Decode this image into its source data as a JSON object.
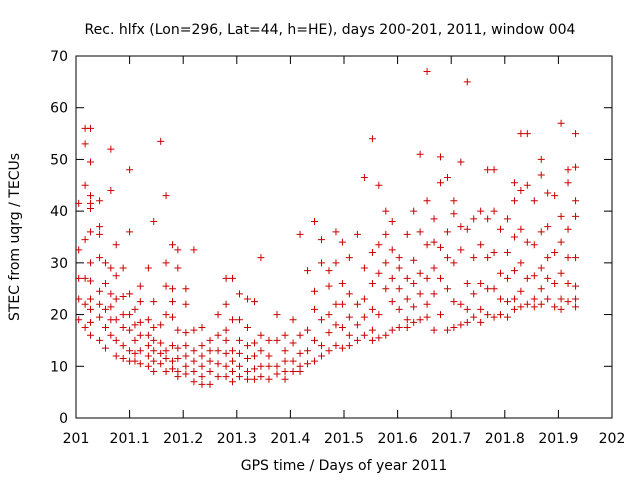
{
  "chart_data": {
    "type": "scatter",
    "title": "Rec. hlfx (Lon=296, Lat=44, h=HE), days 200-201, 2011, window 004",
    "xlabel": "GPS time / Days of year 2011",
    "ylabel": "STEC from uqrg / TECUs",
    "xlim": [
      201,
      202
    ],
    "ylim": [
      0,
      70
    ],
    "xticks": [
      201,
      201.1,
      201.2,
      201.3,
      201.4,
      201.5,
      201.6,
      201.7,
      201.8,
      201.9,
      202
    ],
    "xtick_labels": [
      "201",
      "201.1",
      "201.2",
      "201.3",
      "201.4",
      "201.5",
      "201.6",
      "201.7",
      "201.8",
      "201.9",
      "202"
    ],
    "yticks": [
      0,
      10,
      20,
      30,
      40,
      50,
      60,
      70
    ],
    "ytick_labels": [
      "0",
      "10",
      "20",
      "30",
      "40",
      "50",
      "60",
      "70"
    ],
    "grid": false,
    "marker": "plus",
    "color": "#cc0000",
    "points": [
      [
        201.005,
        41.5
      ],
      [
        201.005,
        32.5
      ],
      [
        201.005,
        27
      ],
      [
        201.005,
        23
      ],
      [
        201.005,
        19
      ],
      [
        201.017,
        56
      ],
      [
        201.017,
        53
      ],
      [
        201.017,
        45
      ],
      [
        201.017,
        34.5
      ],
      [
        201.017,
        27
      ],
      [
        201.017,
        22
      ],
      [
        201.017,
        17.5
      ],
      [
        201.027,
        56
      ],
      [
        201.027,
        49.5
      ],
      [
        201.027,
        43
      ],
      [
        201.027,
        41.5
      ],
      [
        201.027,
        40.5
      ],
      [
        201.027,
        36
      ],
      [
        201.027,
        30
      ],
      [
        201.027,
        26.5
      ],
      [
        201.027,
        23
      ],
      [
        201.027,
        21
      ],
      [
        201.027,
        18.5
      ],
      [
        201.027,
        16
      ],
      [
        201.044,
        42
      ],
      [
        201.044,
        37
      ],
      [
        201.044,
        35.5
      ],
      [
        201.044,
        31
      ],
      [
        201.044,
        24.5
      ],
      [
        201.044,
        22
      ],
      [
        201.044,
        19.5
      ],
      [
        201.044,
        15
      ],
      [
        201.055,
        30
      ],
      [
        201.055,
        26
      ],
      [
        201.055,
        21
      ],
      [
        201.055,
        17.5
      ],
      [
        201.055,
        13.5
      ],
      [
        201.065,
        52
      ],
      [
        201.065,
        44
      ],
      [
        201.065,
        29
      ],
      [
        201.065,
        24
      ],
      [
        201.065,
        21.5
      ],
      [
        201.065,
        19
      ],
      [
        201.065,
        16
      ],
      [
        201.075,
        33.5
      ],
      [
        201.075,
        27.5
      ],
      [
        201.075,
        23
      ],
      [
        201.075,
        19
      ],
      [
        201.075,
        15
      ],
      [
        201.075,
        12
      ],
      [
        201.088,
        29
      ],
      [
        201.088,
        23.5
      ],
      [
        201.088,
        20
      ],
      [
        201.088,
        17.5
      ],
      [
        201.088,
        14
      ],
      [
        201.088,
        11.5
      ],
      [
        201.1,
        48
      ],
      [
        201.1,
        36
      ],
      [
        201.1,
        24
      ],
      [
        201.1,
        20
      ],
      [
        201.1,
        17
      ],
      [
        201.1,
        13
      ],
      [
        201.1,
        11
      ],
      [
        201.11,
        21
      ],
      [
        201.11,
        18
      ],
      [
        201.11,
        15
      ],
      [
        201.11,
        12.5
      ],
      [
        201.11,
        11
      ],
      [
        201.12,
        25.5
      ],
      [
        201.12,
        22.5
      ],
      [
        201.12,
        18.5
      ],
      [
        201.12,
        16
      ],
      [
        201.12,
        13
      ],
      [
        201.12,
        10.5
      ],
      [
        201.135,
        29
      ],
      [
        201.135,
        19
      ],
      [
        201.135,
        16
      ],
      [
        201.135,
        14
      ],
      [
        201.135,
        12
      ],
      [
        201.135,
        10
      ],
      [
        201.145,
        38
      ],
      [
        201.145,
        22.5
      ],
      [
        201.145,
        17.5
      ],
      [
        201.145,
        15
      ],
      [
        201.145,
        13
      ],
      [
        201.145,
        11
      ],
      [
        201.145,
        9
      ],
      [
        201.158,
        53.5
      ],
      [
        201.158,
        18
      ],
      [
        201.158,
        14.5
      ],
      [
        201.158,
        12.5
      ],
      [
        201.158,
        10.5
      ],
      [
        201.168,
        43
      ],
      [
        201.168,
        30
      ],
      [
        201.168,
        25.5
      ],
      [
        201.168,
        20
      ],
      [
        201.168,
        13
      ],
      [
        201.168,
        11.5
      ],
      [
        201.168,
        9
      ],
      [
        201.18,
        33.5
      ],
      [
        201.18,
        25
      ],
      [
        201.18,
        22.5
      ],
      [
        201.18,
        19.5
      ],
      [
        201.18,
        14
      ],
      [
        201.18,
        11
      ],
      [
        201.18,
        9.5
      ],
      [
        201.19,
        29
      ],
      [
        201.19,
        32.5
      ],
      [
        201.19,
        17
      ],
      [
        201.19,
        13.5
      ],
      [
        201.19,
        11.5
      ],
      [
        201.19,
        9
      ],
      [
        201.19,
        8
      ],
      [
        201.205,
        25
      ],
      [
        201.205,
        22
      ],
      [
        201.205,
        16.5
      ],
      [
        201.205,
        14
      ],
      [
        201.205,
        12
      ],
      [
        201.205,
        10
      ],
      [
        201.205,
        8.5
      ],
      [
        201.22,
        32.5
      ],
      [
        201.22,
        17
      ],
      [
        201.22,
        13
      ],
      [
        201.22,
        11
      ],
      [
        201.22,
        9
      ],
      [
        201.22,
        7
      ],
      [
        201.235,
        17.5
      ],
      [
        201.235,
        14
      ],
      [
        201.235,
        12
      ],
      [
        201.235,
        10
      ],
      [
        201.235,
        8
      ],
      [
        201.235,
        6.5
      ],
      [
        201.25,
        15
      ],
      [
        201.25,
        13
      ],
      [
        201.25,
        11
      ],
      [
        201.25,
        9
      ],
      [
        201.25,
        6.5
      ],
      [
        201.265,
        20
      ],
      [
        201.265,
        16
      ],
      [
        201.265,
        13
      ],
      [
        201.265,
        10.5
      ],
      [
        201.265,
        8
      ],
      [
        201.28,
        27
      ],
      [
        201.28,
        22
      ],
      [
        201.28,
        17
      ],
      [
        201.28,
        15
      ],
      [
        201.28,
        12.5
      ],
      [
        201.28,
        10
      ],
      [
        201.28,
        8
      ],
      [
        201.292,
        27
      ],
      [
        201.292,
        19
      ],
      [
        201.292,
        13
      ],
      [
        201.292,
        11
      ],
      [
        201.292,
        9
      ],
      [
        201.292,
        7
      ],
      [
        201.305,
        24
      ],
      [
        201.305,
        19
      ],
      [
        201.305,
        15
      ],
      [
        201.305,
        12.5
      ],
      [
        201.305,
        10
      ],
      [
        201.305,
        8
      ],
      [
        201.32,
        23
      ],
      [
        201.32,
        17.5
      ],
      [
        201.32,
        14
      ],
      [
        201.32,
        11.5
      ],
      [
        201.32,
        9
      ],
      [
        201.32,
        7.5
      ],
      [
        201.333,
        22.5
      ],
      [
        201.333,
        14.5
      ],
      [
        201.333,
        12
      ],
      [
        201.333,
        9.5
      ],
      [
        201.333,
        7.5
      ],
      [
        201.345,
        31
      ],
      [
        201.345,
        16
      ],
      [
        201.345,
        13
      ],
      [
        201.345,
        10
      ],
      [
        201.345,
        8
      ],
      [
        201.36,
        15
      ],
      [
        201.36,
        12
      ],
      [
        201.36,
        10
      ],
      [
        201.36,
        7.5
      ],
      [
        201.375,
        20
      ],
      [
        201.375,
        15
      ],
      [
        201.375,
        10
      ],
      [
        201.375,
        8.5
      ],
      [
        201.39,
        16
      ],
      [
        201.39,
        13
      ],
      [
        201.39,
        11
      ],
      [
        201.39,
        9
      ],
      [
        201.39,
        7.5
      ],
      [
        201.405,
        19
      ],
      [
        201.405,
        14.5
      ],
      [
        201.405,
        11
      ],
      [
        201.405,
        9
      ],
      [
        201.418,
        35.5
      ],
      [
        201.418,
        16
      ],
      [
        201.418,
        12.5
      ],
      [
        201.418,
        10
      ],
      [
        201.418,
        9
      ],
      [
        201.432,
        28.5
      ],
      [
        201.432,
        17
      ],
      [
        201.432,
        13
      ],
      [
        201.432,
        10.5
      ],
      [
        201.445,
        38
      ],
      [
        201.445,
        24.5
      ],
      [
        201.445,
        21
      ],
      [
        201.445,
        15
      ],
      [
        201.445,
        11
      ],
      [
        201.458,
        34.5
      ],
      [
        201.458,
        30
      ],
      [
        201.458,
        19
      ],
      [
        201.458,
        14
      ],
      [
        201.458,
        12
      ],
      [
        201.472,
        28.5
      ],
      [
        201.472,
        25.5
      ],
      [
        201.472,
        20
      ],
      [
        201.472,
        16.5
      ],
      [
        201.472,
        13
      ],
      [
        201.485,
        36
      ],
      [
        201.485,
        30
      ],
      [
        201.485,
        22
      ],
      [
        201.485,
        18
      ],
      [
        201.485,
        14
      ],
      [
        201.497,
        34
      ],
      [
        201.497,
        26
      ],
      [
        201.497,
        22
      ],
      [
        201.497,
        17.5
      ],
      [
        201.497,
        13.5
      ],
      [
        201.51,
        31
      ],
      [
        201.51,
        24
      ],
      [
        201.51,
        19.5
      ],
      [
        201.51,
        16
      ],
      [
        201.51,
        14
      ],
      [
        201.525,
        35.5
      ],
      [
        201.525,
        22
      ],
      [
        201.525,
        18
      ],
      [
        201.525,
        15
      ],
      [
        201.538,
        46.5
      ],
      [
        201.538,
        29
      ],
      [
        201.538,
        23
      ],
      [
        201.538,
        19.5
      ],
      [
        201.538,
        16
      ],
      [
        201.553,
        54
      ],
      [
        201.553,
        32
      ],
      [
        201.553,
        26
      ],
      [
        201.553,
        21
      ],
      [
        201.553,
        17
      ],
      [
        201.553,
        15
      ],
      [
        201.565,
        45
      ],
      [
        201.565,
        33.5
      ],
      [
        201.565,
        28
      ],
      [
        201.565,
        20
      ],
      [
        201.565,
        15.5
      ],
      [
        201.578,
        40
      ],
      [
        201.578,
        35.5
      ],
      [
        201.578,
        30
      ],
      [
        201.578,
        25
      ],
      [
        201.578,
        16
      ],
      [
        201.59,
        38
      ],
      [
        201.59,
        32.5
      ],
      [
        201.59,
        27
      ],
      [
        201.59,
        22.5
      ],
      [
        201.59,
        17
      ],
      [
        201.603,
        31
      ],
      [
        201.603,
        29
      ],
      [
        201.603,
        25
      ],
      [
        201.603,
        21
      ],
      [
        201.603,
        17.5
      ],
      [
        201.618,
        35.5
      ],
      [
        201.618,
        27
      ],
      [
        201.618,
        23
      ],
      [
        201.618,
        19
      ],
      [
        201.618,
        17.5
      ],
      [
        201.63,
        40
      ],
      [
        201.63,
        30.5
      ],
      [
        201.63,
        26
      ],
      [
        201.63,
        21.5
      ],
      [
        201.63,
        18.5
      ],
      [
        201.642,
        51
      ],
      [
        201.642,
        36
      ],
      [
        201.642,
        28
      ],
      [
        201.642,
        24
      ],
      [
        201.642,
        19
      ],
      [
        201.655,
        67
      ],
      [
        201.655,
        42
      ],
      [
        201.655,
        33.5
      ],
      [
        201.655,
        27
      ],
      [
        201.655,
        22
      ],
      [
        201.655,
        19.5
      ],
      [
        201.668,
        38.5
      ],
      [
        201.668,
        34
      ],
      [
        201.668,
        29
      ],
      [
        201.668,
        24
      ],
      [
        201.668,
        17
      ],
      [
        201.68,
        50.5
      ],
      [
        201.68,
        45.5
      ],
      [
        201.68,
        33
      ],
      [
        201.68,
        27
      ],
      [
        201.68,
        20
      ],
      [
        201.693,
        46.5
      ],
      [
        201.693,
        36
      ],
      [
        201.693,
        31
      ],
      [
        201.693,
        25
      ],
      [
        201.693,
        17
      ],
      [
        201.705,
        42
      ],
      [
        201.705,
        39.5
      ],
      [
        201.705,
        30
      ],
      [
        201.705,
        22.5
      ],
      [
        201.705,
        17.5
      ],
      [
        201.718,
        49.5
      ],
      [
        201.718,
        37
      ],
      [
        201.718,
        32.5
      ],
      [
        201.718,
        22
      ],
      [
        201.718,
        18
      ],
      [
        201.73,
        65
      ],
      [
        201.73,
        36.5
      ],
      [
        201.73,
        26
      ],
      [
        201.73,
        21
      ],
      [
        201.73,
        18.5
      ],
      [
        201.742,
        38.5
      ],
      [
        201.742,
        31
      ],
      [
        201.742,
        24
      ],
      [
        201.742,
        19.5
      ],
      [
        201.755,
        40
      ],
      [
        201.755,
        33.5
      ],
      [
        201.755,
        26
      ],
      [
        201.755,
        21
      ],
      [
        201.755,
        18.5
      ],
      [
        201.768,
        48
      ],
      [
        201.768,
        38.5
      ],
      [
        201.768,
        31
      ],
      [
        201.768,
        25
      ],
      [
        201.768,
        20
      ],
      [
        201.78,
        48
      ],
      [
        201.78,
        40
      ],
      [
        201.78,
        32
      ],
      [
        201.78,
        25
      ],
      [
        201.78,
        19.5
      ],
      [
        201.792,
        36.5
      ],
      [
        201.792,
        28
      ],
      [
        201.792,
        23
      ],
      [
        201.792,
        20
      ],
      [
        201.805,
        38.5
      ],
      [
        201.805,
        32
      ],
      [
        201.805,
        27
      ],
      [
        201.805,
        22.5
      ],
      [
        201.805,
        19.5
      ],
      [
        201.818,
        45.5
      ],
      [
        201.818,
        42
      ],
      [
        201.818,
        35
      ],
      [
        201.818,
        28.5
      ],
      [
        201.818,
        23
      ],
      [
        201.818,
        21
      ],
      [
        201.83,
        55
      ],
      [
        201.83,
        44
      ],
      [
        201.83,
        36.5
      ],
      [
        201.83,
        30
      ],
      [
        201.83,
        24.5
      ],
      [
        201.83,
        21.5
      ],
      [
        201.842,
        55
      ],
      [
        201.842,
        45
      ],
      [
        201.842,
        34
      ],
      [
        201.842,
        27
      ],
      [
        201.842,
        22
      ],
      [
        201.855,
        42
      ],
      [
        201.855,
        33.5
      ],
      [
        201.855,
        27.5
      ],
      [
        201.855,
        23
      ],
      [
        201.855,
        21.5
      ],
      [
        201.868,
        50
      ],
      [
        201.868,
        47
      ],
      [
        201.868,
        36
      ],
      [
        201.868,
        29
      ],
      [
        201.868,
        25
      ],
      [
        201.868,
        22
      ],
      [
        201.88,
        43.5
      ],
      [
        201.88,
        37
      ],
      [
        201.88,
        31
      ],
      [
        201.88,
        27
      ],
      [
        201.88,
        23
      ],
      [
        201.893,
        43
      ],
      [
        201.893,
        32
      ],
      [
        201.893,
        26
      ],
      [
        201.893,
        21.5
      ],
      [
        201.905,
        57
      ],
      [
        201.905,
        39
      ],
      [
        201.905,
        34
      ],
      [
        201.905,
        28
      ],
      [
        201.905,
        23
      ],
      [
        201.905,
        21
      ],
      [
        201.918,
        48
      ],
      [
        201.918,
        45.5
      ],
      [
        201.918,
        36.5
      ],
      [
        201.918,
        31
      ],
      [
        201.918,
        26
      ],
      [
        201.918,
        22.5
      ],
      [
        201.932,
        55
      ],
      [
        201.932,
        48.5
      ],
      [
        201.932,
        42
      ],
      [
        201.932,
        39
      ],
      [
        201.932,
        31
      ],
      [
        201.932,
        25.5
      ],
      [
        201.932,
        23
      ],
      [
        201.932,
        21.5
      ]
    ]
  }
}
